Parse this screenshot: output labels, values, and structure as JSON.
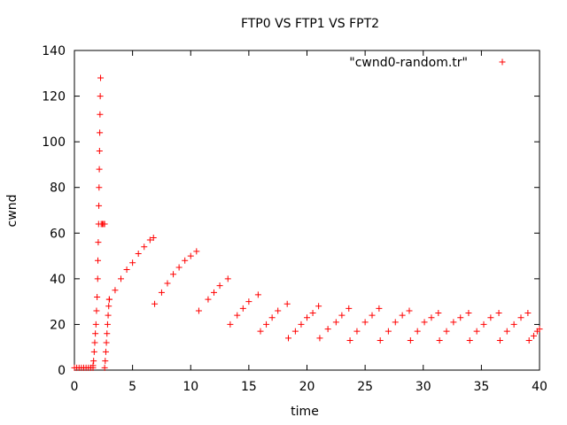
{
  "chart_data": {
    "type": "scatter",
    "title": "FTP0 VS FTP1 VS FPT2",
    "xlabel": "time",
    "ylabel": "cwnd",
    "xlim": [
      0,
      40
    ],
    "ylim": [
      0,
      140
    ],
    "xticks": [
      "0",
      "5",
      "10",
      "15",
      "20",
      "25",
      "30",
      "35",
      "40"
    ],
    "yticks": [
      "0",
      "20",
      "40",
      "60",
      "80",
      "100",
      "120",
      "140"
    ],
    "grid": false,
    "legend_position": "top-right",
    "marker": "+",
    "series": [
      {
        "name": "\"cwnd0-random.tr\"",
        "color": "#ff0000",
        "points": [
          [
            0.0,
            1
          ],
          [
            0.2,
            1
          ],
          [
            0.4,
            1
          ],
          [
            0.6,
            1
          ],
          [
            0.8,
            1
          ],
          [
            1.0,
            1
          ],
          [
            1.2,
            1
          ],
          [
            1.4,
            1
          ],
          [
            1.6,
            1
          ],
          [
            1.6,
            2
          ],
          [
            1.65,
            4
          ],
          [
            1.7,
            8
          ],
          [
            1.75,
            12
          ],
          [
            1.8,
            16
          ],
          [
            1.85,
            20
          ],
          [
            1.9,
            26
          ],
          [
            1.95,
            32
          ],
          [
            2.0,
            40
          ],
          [
            2.02,
            48
          ],
          [
            2.05,
            56
          ],
          [
            2.08,
            64
          ],
          [
            2.1,
            72
          ],
          [
            2.12,
            80
          ],
          [
            2.14,
            88
          ],
          [
            2.16,
            96
          ],
          [
            2.18,
            104
          ],
          [
            2.2,
            112
          ],
          [
            2.22,
            120
          ],
          [
            2.25,
            128
          ],
          [
            2.3,
            64
          ],
          [
            2.4,
            64
          ],
          [
            2.5,
            64
          ],
          [
            2.6,
            64
          ],
          [
            2.6,
            1
          ],
          [
            2.65,
            4
          ],
          [
            2.7,
            8
          ],
          [
            2.75,
            12
          ],
          [
            2.8,
            16
          ],
          [
            2.85,
            20
          ],
          [
            2.9,
            24
          ],
          [
            2.95,
            28
          ],
          [
            3.0,
            31
          ],
          [
            3.0,
            31
          ],
          [
            3.5,
            35
          ],
          [
            4.0,
            40
          ],
          [
            4.5,
            44
          ],
          [
            5.0,
            47
          ],
          [
            5.5,
            51
          ],
          [
            6.0,
            54
          ],
          [
            6.5,
            57
          ],
          [
            6.8,
            58
          ],
          [
            6.9,
            29
          ],
          [
            7.5,
            34
          ],
          [
            8.0,
            38
          ],
          [
            8.5,
            42
          ],
          [
            9.0,
            45
          ],
          [
            9.5,
            48
          ],
          [
            10.0,
            50
          ],
          [
            10.5,
            52
          ],
          [
            10.7,
            26
          ],
          [
            11.5,
            31
          ],
          [
            12.0,
            34
          ],
          [
            12.5,
            37
          ],
          [
            13.2,
            40
          ],
          [
            13.4,
            20
          ],
          [
            14.0,
            24
          ],
          [
            14.5,
            27
          ],
          [
            15.0,
            30
          ],
          [
            15.8,
            33
          ],
          [
            16.0,
            17
          ],
          [
            16.5,
            20
          ],
          [
            17.0,
            23
          ],
          [
            17.5,
            26
          ],
          [
            18.3,
            29
          ],
          [
            18.4,
            14
          ],
          [
            19.0,
            17
          ],
          [
            19.5,
            20
          ],
          [
            20.0,
            23
          ],
          [
            20.5,
            25
          ],
          [
            21.0,
            28
          ],
          [
            21.1,
            14
          ],
          [
            21.8,
            18
          ],
          [
            22.5,
            21
          ],
          [
            23.0,
            24
          ],
          [
            23.6,
            27
          ],
          [
            23.7,
            13
          ],
          [
            24.3,
            17
          ],
          [
            25.0,
            21
          ],
          [
            25.6,
            24
          ],
          [
            26.2,
            27
          ],
          [
            26.3,
            13
          ],
          [
            27.0,
            17
          ],
          [
            27.6,
            21
          ],
          [
            28.2,
            24
          ],
          [
            28.8,
            26
          ],
          [
            28.9,
            13
          ],
          [
            29.5,
            17
          ],
          [
            30.1,
            21
          ],
          [
            30.7,
            23
          ],
          [
            31.3,
            25
          ],
          [
            31.4,
            13
          ],
          [
            32.0,
            17
          ],
          [
            32.6,
            21
          ],
          [
            33.2,
            23
          ],
          [
            33.9,
            25
          ],
          [
            34.0,
            13
          ],
          [
            34.6,
            17
          ],
          [
            35.2,
            20
          ],
          [
            35.8,
            23
          ],
          [
            36.5,
            25
          ],
          [
            36.6,
            13
          ],
          [
            37.2,
            17
          ],
          [
            37.8,
            20
          ],
          [
            38.4,
            23
          ],
          [
            39.0,
            25
          ],
          [
            39.1,
            13
          ],
          [
            39.5,
            15
          ],
          [
            39.8,
            17
          ],
          [
            40.0,
            18
          ]
        ]
      }
    ]
  }
}
